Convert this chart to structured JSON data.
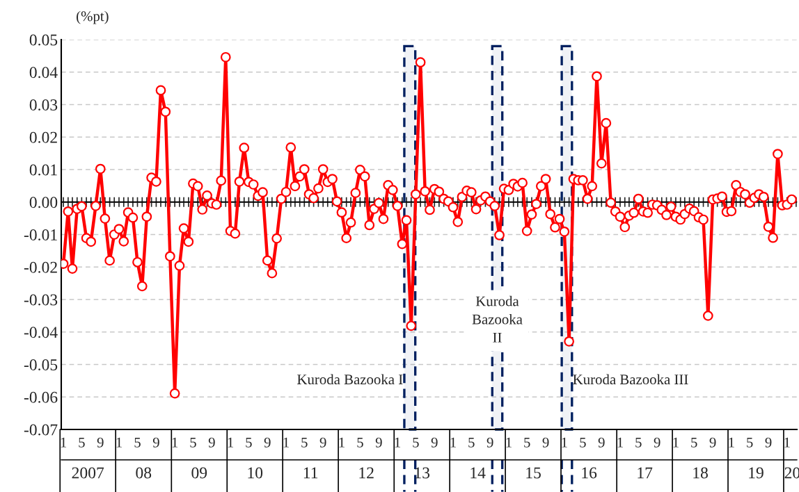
{
  "chart_data": {
    "type": "line",
    "ylabel": "(%pt)",
    "x": [
      "2007-01",
      "2007-02",
      "2007-03",
      "2007-04",
      "2007-05",
      "2007-06",
      "2007-07",
      "2007-08",
      "2007-09",
      "2007-10",
      "2007-11",
      "2007-12",
      "2008-01",
      "2008-02",
      "2008-03",
      "2008-04",
      "2008-05",
      "2008-06",
      "2008-07",
      "2008-08",
      "2008-09",
      "2008-10",
      "2008-11",
      "2008-12",
      "2009-01",
      "2009-02",
      "2009-03",
      "2009-04",
      "2009-05",
      "2009-06",
      "2009-07",
      "2009-08",
      "2009-09",
      "2009-10",
      "2009-11",
      "2009-12",
      "2010-01",
      "2010-02",
      "2010-03",
      "2010-04",
      "2010-05",
      "2010-06",
      "2010-07",
      "2010-08",
      "2010-09",
      "2010-10",
      "2010-11",
      "2010-12",
      "2011-01",
      "2011-02",
      "2011-03",
      "2011-04",
      "2011-05",
      "2011-06",
      "2011-07",
      "2011-08",
      "2011-09",
      "2011-10",
      "2011-11",
      "2011-12",
      "2012-01",
      "2012-02",
      "2012-03",
      "2012-04",
      "2012-05",
      "2012-06",
      "2012-07",
      "2012-08",
      "2012-09",
      "2012-10",
      "2012-11",
      "2012-12",
      "2013-01",
      "2013-02",
      "2013-03",
      "2013-04",
      "2013-05",
      "2013-06",
      "2013-07",
      "2013-08",
      "2013-09",
      "2013-10",
      "2013-11",
      "2013-12",
      "2014-01",
      "2014-02",
      "2014-03",
      "2014-04",
      "2014-05",
      "2014-06",
      "2014-07",
      "2014-08",
      "2014-09",
      "2014-10",
      "2014-11",
      "2014-12",
      "2015-01",
      "2015-02",
      "2015-03",
      "2015-04",
      "2015-05",
      "2015-06",
      "2015-07",
      "2015-08",
      "2015-09",
      "2015-10",
      "2015-11",
      "2015-12",
      "2016-01",
      "2016-02",
      "2016-03",
      "2016-04",
      "2016-05",
      "2016-06",
      "2016-07",
      "2016-08",
      "2016-09",
      "2016-10",
      "2016-11",
      "2016-12",
      "2017-01",
      "2017-02",
      "2017-03",
      "2017-04",
      "2017-05",
      "2017-06",
      "2017-07",
      "2017-08",
      "2017-09",
      "2017-10",
      "2017-11",
      "2017-12",
      "2018-01",
      "2018-02",
      "2018-03",
      "2018-04",
      "2018-05",
      "2018-06",
      "2018-07",
      "2018-08",
      "2018-09",
      "2018-10",
      "2018-11",
      "2018-12",
      "2019-01",
      "2019-02",
      "2019-03",
      "2019-04",
      "2019-05",
      "2019-06",
      "2019-07",
      "2019-08",
      "2019-09",
      "2019-10",
      "2019-11",
      "2019-12",
      "2020-01",
      "2020-02"
    ],
    "series": [
      {
        "color": "#ff0000",
        "values": [
          -0.019,
          -0.0029,
          -0.0205,
          -0.0021,
          -0.0013,
          -0.0111,
          -0.0122,
          -0.0012,
          0.0102,
          -0.0051,
          -0.018,
          -0.01,
          -0.0083,
          -0.0121,
          -0.0032,
          -0.0048,
          -0.0185,
          -0.0259,
          -0.0045,
          0.0075,
          0.0063,
          0.0344,
          0.0278,
          -0.0167,
          -0.0589,
          -0.0196,
          -0.0081,
          -0.0122,
          0.0057,
          0.0049,
          -0.0023,
          0.002,
          -0.0004,
          -0.0008,
          0.0066,
          0.0446,
          -0.0089,
          -0.0097,
          0.0063,
          0.0167,
          0.0062,
          0.0054,
          0.0019,
          0.003,
          -0.018,
          -0.0219,
          -0.0112,
          0.001,
          0.0031,
          0.0168,
          0.0049,
          0.0079,
          0.0101,
          0.0024,
          0.0012,
          0.0042,
          0.0101,
          0.0062,
          0.0071,
          0.0002,
          -0.0032,
          -0.0111,
          -0.0063,
          0.0028,
          0.0099,
          0.0079,
          -0.0071,
          -0.0021,
          -0.0003,
          -0.0052,
          0.0052,
          0.0037,
          -0.0012,
          -0.0129,
          -0.0056,
          -0.0381,
          0.0024,
          0.043,
          0.0033,
          -0.0024,
          0.004,
          0.0032,
          0.001,
          0.0002,
          -0.0016,
          -0.0061,
          0.0016,
          0.0035,
          0.003,
          -0.0022,
          0.0005,
          0.0017,
          0.0002,
          -0.0012,
          -0.0102,
          0.0041,
          0.0037,
          0.0056,
          0.0048,
          0.0059,
          -0.0089,
          -0.0038,
          -0.0006,
          0.0049,
          0.0071,
          -0.0037,
          -0.0078,
          -0.0052,
          -0.0091,
          -0.0429,
          0.0071,
          0.0067,
          0.0067,
          0.001,
          0.0049,
          0.0387,
          0.0119,
          0.0243,
          -0.0002,
          -0.0029,
          -0.0045,
          -0.0077,
          -0.0042,
          -0.0033,
          0.001,
          -0.0029,
          -0.0033,
          -0.0008,
          -0.001,
          -0.0024,
          -0.004,
          -0.0014,
          -0.0045,
          -0.0054,
          -0.0037,
          -0.002,
          -0.0028,
          -0.0047,
          -0.0054,
          -0.035,
          0.0008,
          0.0011,
          0.0017,
          -0.003,
          -0.0028,
          0.0052,
          0.0031,
          0.0024,
          -0.0002,
          0.0013,
          0.0024,
          0.0016,
          -0.0076,
          -0.011,
          0.0148,
          -0.001,
          -0.0008,
          0.0008
        ]
      }
    ],
    "marker": "circle",
    "line_style": "solid",
    "ylim": [
      -0.07,
      0.05
    ],
    "yticks": [
      0.05,
      0.04,
      0.03,
      0.02,
      0.01,
      {
        "value": 0,
        "label": "0.00"
      },
      -0.01,
      -0.02,
      -0.03,
      -0.04,
      -0.05,
      -0.06,
      -0.07
    ],
    "xlim": [
      "2006-12-18",
      "2020-03-06"
    ],
    "xticks": [
      {
        "value": "2007-01",
        "label": "1"
      },
      {
        "value": "2007-05",
        "label": "5"
      },
      {
        "value": "2007-09",
        "label": "9"
      },
      {
        "value": "2008-01",
        "label": "1"
      },
      {
        "value": "2008-05",
        "label": "5"
      },
      {
        "value": "2008-09",
        "label": "9"
      },
      {
        "value": "2009-01",
        "label": "1"
      },
      {
        "value": "2009-05",
        "label": "5"
      },
      {
        "value": "2009-09",
        "label": "9"
      },
      {
        "value": "2010-01",
        "label": "1"
      },
      {
        "value": "2010-05",
        "label": "5"
      },
      {
        "value": "2010-09",
        "label": "9"
      },
      {
        "value": "2011-01",
        "label": "1"
      },
      {
        "value": "2011-05",
        "label": "5"
      },
      {
        "value": "2011-09",
        "label": "9"
      },
      {
        "value": "2012-01",
        "label": "1"
      },
      {
        "value": "2012-05",
        "label": "5"
      },
      {
        "value": "2012-09",
        "label": "9"
      },
      {
        "value": "2013-01",
        "label": "1"
      },
      {
        "value": "2013-05",
        "label": "5"
      },
      {
        "value": "2013-09",
        "label": "9"
      },
      {
        "value": "2014-01",
        "label": "1"
      },
      {
        "value": "2014-05",
        "label": "5"
      },
      {
        "value": "2014-09",
        "label": "9"
      },
      {
        "value": "2015-01",
        "label": "1"
      },
      {
        "value": "2015-05",
        "label": "5"
      },
      {
        "value": "2015-09",
        "label": "9"
      },
      {
        "value": "2016-01",
        "label": "1"
      },
      {
        "value": "2016-05",
        "label": "5"
      },
      {
        "value": "2016-09",
        "label": "9"
      },
      {
        "value": "2017-01",
        "label": "1"
      },
      {
        "value": "2017-05",
        "label": "5"
      },
      {
        "value": "2017-09",
        "label": "9"
      },
      {
        "value": "2018-01",
        "label": "1"
      },
      {
        "value": "2018-05",
        "label": "5"
      },
      {
        "value": "2018-09",
        "label": "9"
      },
      {
        "value": "2019-01",
        "label": "1"
      },
      {
        "value": "2019-05",
        "label": "5"
      },
      {
        "value": "2019-09",
        "label": "9"
      },
      {
        "value": "2020-01",
        "label": "1"
      }
    ],
    "annotations": [
      "2007",
      "08",
      "09",
      "10",
      "11",
      "12",
      "13",
      "14",
      "15",
      "16",
      "17",
      "18",
      "19",
      "20"
    ],
    "ref_lines": [
      {
        "axis": "y",
        "value": 0,
        "color": "#000000",
        "line_style": "solid"
      }
    ],
    "bands": [
      {
        "axis": "x",
        "from": "2013-02-15",
        "to": "2013-04-28",
        "label": "Kuroda Bazooka I",
        "color": "#002060"
      },
      {
        "axis": "x",
        "from": "2014-09-15",
        "to": "2014-11-20",
        "label": "Kuroda\nBazooka\nII",
        "color": "#002060"
      },
      {
        "axis": "x",
        "from": "2015-12-15",
        "to": "2016-02-20",
        "label": "Kuroda Bazooka III",
        "color": "#002060"
      }
    ],
    "grid": "y"
  }
}
